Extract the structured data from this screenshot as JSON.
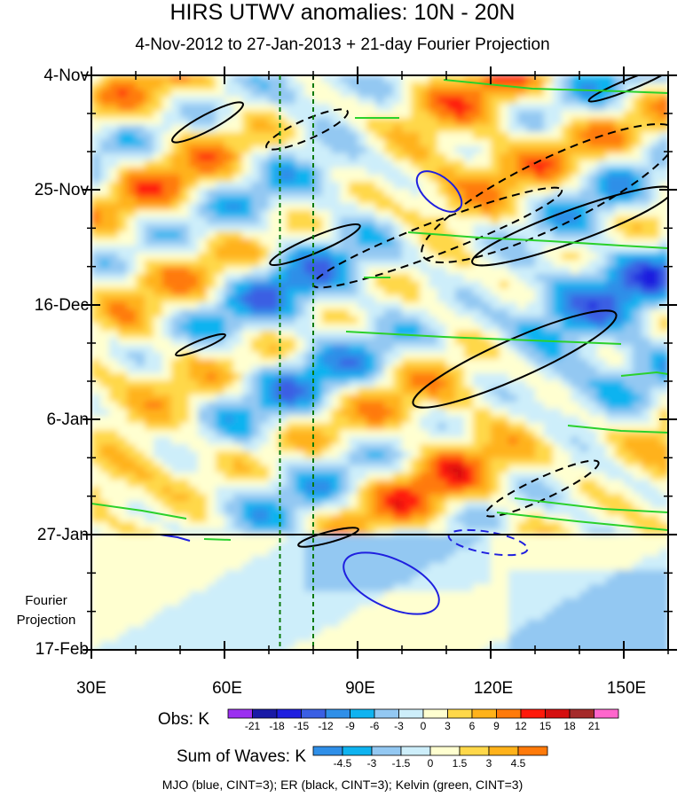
{
  "chart_data": {
    "type": "heatmap",
    "title": "HIRS UTWV anomalies: 10N - 20N",
    "subtitle": "4-Nov-2012 to 27-Jan-2013 + 21-day Fourier Projection",
    "x_axis": {
      "label": "",
      "range": [
        30,
        160
      ],
      "ticks": [
        30,
        60,
        90,
        120,
        150
      ],
      "tick_labels": [
        "30E",
        "60E",
        "90E",
        "120E",
        "150E"
      ]
    },
    "y_axis": {
      "label": "",
      "range": [
        "4-Nov-2012",
        "17-Feb-2013"
      ],
      "tick_labels": [
        "4-Nov",
        "25-Nov",
        "16-Dec",
        "6-Jan",
        "27-Jan",
        "17-Feb"
      ]
    },
    "observed_end": "27-Jan",
    "projection_label": [
      "Fourier",
      "Projection"
    ],
    "reference_lines_lon": [
      72.5,
      80
    ],
    "obs_legend": {
      "label": "Obs: K",
      "levels": [
        "-21",
        "-18",
        "-15",
        "-12",
        "-9",
        "-6",
        "-3",
        "0",
        "3",
        "6",
        "9",
        "12",
        "15",
        "18",
        "21"
      ],
      "colors": [
        "#9b2ff0",
        "#1a1aa6",
        "#1f1fdf",
        "#3a5fe3",
        "#2f8fe8",
        "#0fb3f0",
        "#93c8f2",
        "#cdeefa",
        "#ffffd0",
        "#ffd84a",
        "#ffb21a",
        "#ff7a0a",
        "#ff1a0a",
        "#d50f0f",
        "#a52a2a",
        "#ff66cc"
      ]
    },
    "waves_legend": {
      "label": "Sum of Waves: K",
      "levels": [
        "-4.5",
        "-3",
        "-1.5",
        "0",
        "1.5",
        "3",
        "4.5"
      ],
      "colors": [
        "#2f8fe8",
        "#0fb3f0",
        "#93c8f2",
        "#cdeefa",
        "#ffffd0",
        "#ffd84a",
        "#ffb21a",
        "#ff7a0a"
      ]
    },
    "wave_contours": [
      {
        "name": "MJO",
        "color": "blue",
        "cint": 3
      },
      {
        "name": "ER",
        "color": "black",
        "cint": 3
      },
      {
        "name": "Kelvin",
        "color": "green",
        "cint": 3
      }
    ]
  },
  "footer": "MJO (blue, CINT=3); ER (black, CINT=3); Kelvin (green, CINT=3)"
}
